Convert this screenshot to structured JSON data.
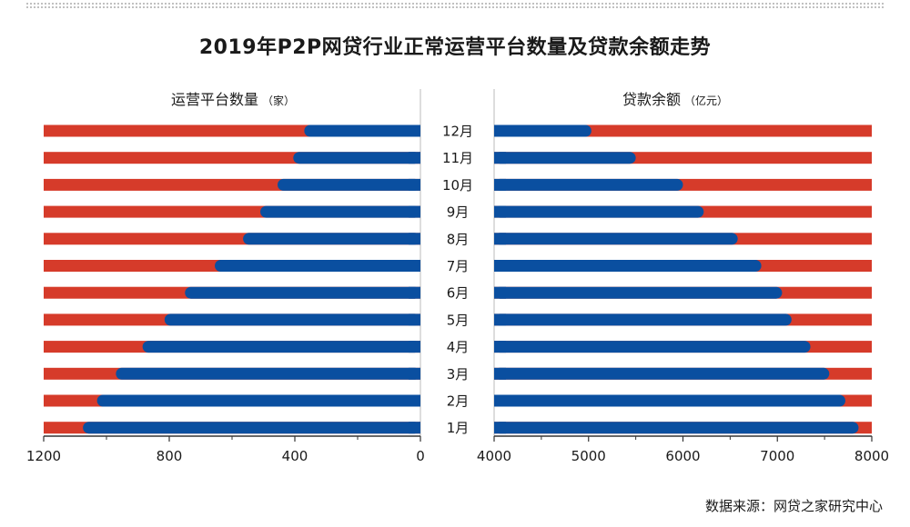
{
  "title": "2019年P2P网贷行业正常运营平台数量及贷款余额走势",
  "source": "数据来源：网贷之家研究中心",
  "colors": {
    "red": "#d63b2a",
    "blue": "#0a4fa0",
    "axis": "#333333",
    "divider": "#bbbbbb"
  },
  "chart_data": {
    "type": "bar",
    "categories": [
      "12月",
      "11月",
      "10月",
      "9月",
      "8月",
      "7月",
      "6月",
      "5月",
      "4月",
      "3月",
      "2月",
      "1月"
    ],
    "series": [
      {
        "name": "运营平台数量",
        "unit": "（家）",
        "values": [
          370,
          405,
          455,
          510,
          565,
          655,
          750,
          815,
          885,
          970,
          1030,
          1075
        ],
        "xlim": [
          1200,
          0
        ],
        "ticks": [
          1200,
          800,
          400,
          0
        ],
        "minor_ticks": [
          1000,
          600,
          200
        ]
      },
      {
        "name": "贷款余额",
        "unit": "（亿元）",
        "values": [
          5030,
          5500,
          6000,
          6220,
          6580,
          6830,
          7050,
          7150,
          7350,
          7550,
          7720,
          7860
        ],
        "xlim": [
          4000,
          8000
        ],
        "ticks": [
          4000,
          5000,
          6000,
          7000,
          8000
        ],
        "minor_ticks": [
          4500,
          5500,
          6500,
          7500
        ]
      }
    ]
  }
}
